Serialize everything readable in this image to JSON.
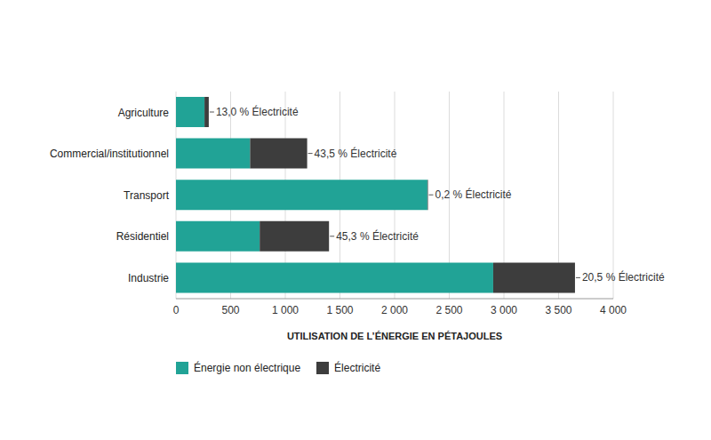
{
  "chart_data": {
    "type": "bar",
    "orientation": "horizontal",
    "stacked": true,
    "grid": true,
    "legend": "bottom",
    "categories": [
      "Agriculture",
      "Commercial/institutionnel",
      "Transport",
      "Résidentiel",
      "Industrie"
    ],
    "series": [
      {
        "name": "Énergie non électrique",
        "color": "#21a396",
        "values": [
          261,
          678,
          2300,
          766,
          2902
        ]
      },
      {
        "name": "Électricité",
        "color": "#3d3d3d",
        "values": [
          39,
          522,
          5,
          634,
          748
        ]
      }
    ],
    "annotations": [
      "13,0 % Électricité",
      "43,5 % Électricité",
      "0,2 % Électricité",
      "45,3 % Électricité",
      "20,5 % Électricité"
    ],
    "x_label": "UTILISATION DE L’ÉNERGIE EN PÉTAJOULES",
    "xlim": [
      0,
      4000
    ],
    "xticks": [
      0,
      500,
      {
        "value": 1000,
        "label": "1 000"
      },
      {
        "value": 1500,
        "label": "1 500"
      },
      {
        "value": 2000,
        "label": "2 000"
      },
      {
        "value": 2500,
        "label": "2 500"
      },
      {
        "value": 3000,
        "label": "3 000"
      },
      {
        "value": 3500,
        "label": "3 500"
      },
      {
        "value": 4000,
        "label": "4 000"
      }
    ]
  }
}
